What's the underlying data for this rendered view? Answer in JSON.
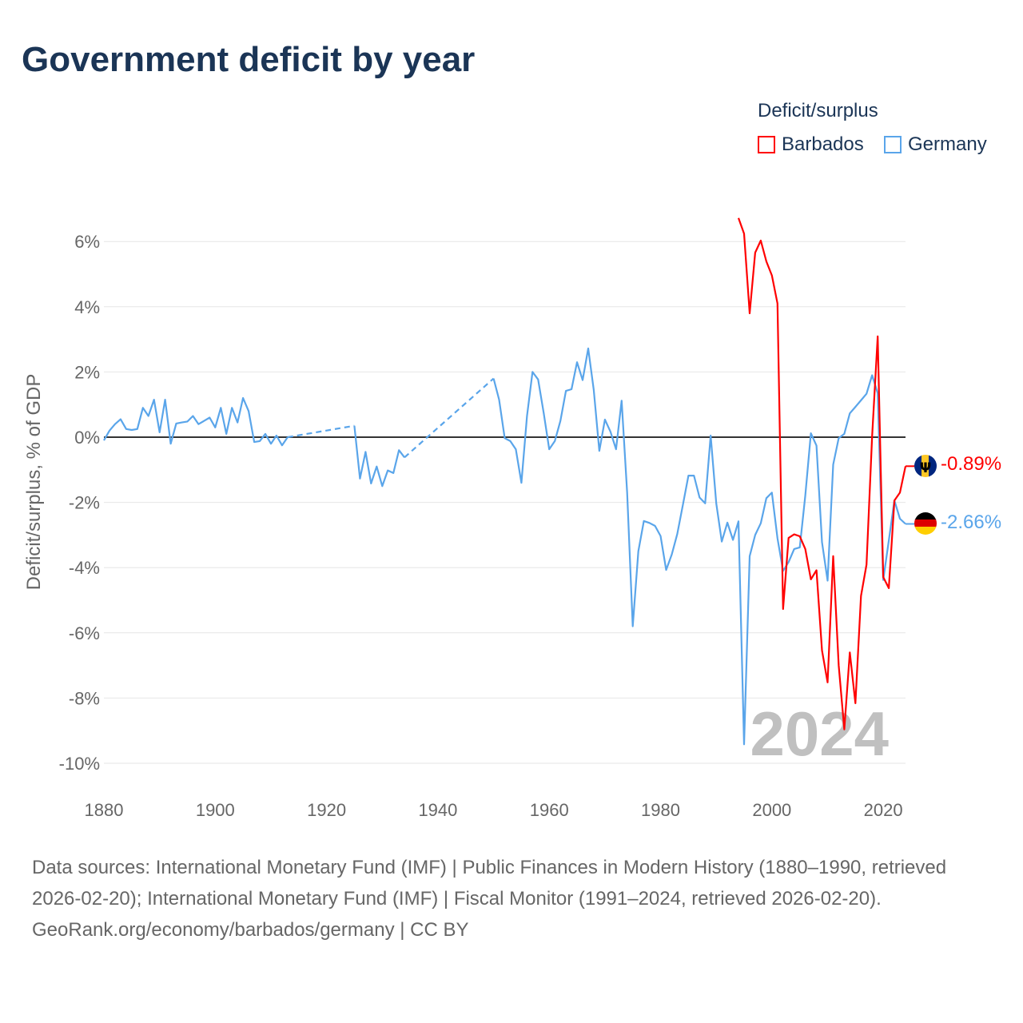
{
  "title": "Government deficit by year",
  "legend": {
    "title": "Deficit/surplus",
    "entries": [
      {
        "name": "Barbados",
        "color": "#ff0000"
      },
      {
        "name": "Germany",
        "color": "#5aa5ea"
      }
    ]
  },
  "year_watermark": "2024",
  "end_labels": {
    "barbados": "-0.89%",
    "germany": "-2.66%"
  },
  "flags": {
    "barbados": "barbados-flag",
    "germany": "germany-flag"
  },
  "footer": {
    "sources": "Data sources: International Monetary Fund (IMF) | Public Finances in Modern History (1880–1990, retrieved 2026-02-20); International Monetary Fund (IMF) | Fiscal Monitor (1991–2024, retrieved 2026-02-20).",
    "credit": "GeoRank.org/economy/barbados/germany | CC BY"
  },
  "chart_data": {
    "type": "line",
    "title": "Government deficit by year",
    "xlabel": "",
    "ylabel": "Deficit/surplus, % of GDP",
    "xlim": [
      1880,
      2024
    ],
    "ylim": [
      -10.5,
      6.8
    ],
    "xticks": [
      "1880",
      "1900",
      "1920",
      "1940",
      "1960",
      "1980",
      "2000",
      "2020"
    ],
    "yticks": [
      {
        "v": 6,
        "label": "6%"
      },
      {
        "v": 4,
        "label": "4%"
      },
      {
        "v": 2,
        "label": "2%"
      },
      {
        "v": 0,
        "label": "0%"
      },
      {
        "v": -2,
        "label": "-2%"
      },
      {
        "v": -4,
        "label": "-4%"
      },
      {
        "v": -6,
        "label": "-6%"
      },
      {
        "v": -8,
        "label": "-8%"
      },
      {
        "v": -10,
        "label": "-10%"
      }
    ],
    "grid": true,
    "legend_position": "top-right",
    "series": [
      {
        "name": "Barbados",
        "color": "#ff0000",
        "start_year": 1994,
        "values": [
          6.72,
          6.24,
          3.8,
          5.66,
          6.03,
          5.39,
          4.96,
          4.1,
          -5.27,
          -3.09,
          -2.98,
          -3.04,
          -3.43,
          -4.36,
          -4.08,
          -6.54,
          -7.52,
          -3.65,
          -7.0,
          -8.96,
          -6.6,
          -8.16,
          -4.87,
          -3.91,
          0.02,
          3.09,
          -4.29,
          -4.63,
          -1.94,
          -1.7,
          -0.89
        ]
      },
      {
        "name": "Germany",
        "color": "#5aa5ea",
        "start_year": 1880,
        "values": [
          -0.1,
          0.2,
          0.4,
          0.55,
          0.25,
          0.22,
          0.25,
          0.9,
          0.65,
          1.15,
          0.15,
          1.15,
          -0.2,
          0.42,
          0.45,
          0.48,
          0.65,
          0.4,
          0.5,
          0.6,
          0.3,
          0.9,
          0.1,
          0.9,
          0.45,
          1.2,
          0.8,
          -0.15,
          -0.12,
          0.1,
          -0.2,
          0.05,
          -0.25,
          0.0,
          null,
          null,
          null,
          null,
          null,
          null,
          null,
          null,
          null,
          null,
          null,
          0.35,
          -1.27,
          -0.45,
          -1.42,
          -0.9,
          -1.5,
          -1.02,
          -1.1,
          -0.4,
          -0.62,
          null,
          null,
          null,
          null,
          null,
          null,
          null,
          null,
          null,
          null,
          null,
          null,
          null,
          null,
          null,
          1.8,
          1.15,
          -0.03,
          -0.12,
          -0.37,
          -1.4,
          0.65,
          2.0,
          1.77,
          0.74,
          -0.37,
          -0.12,
          0.5,
          1.42,
          1.47,
          2.3,
          1.75,
          2.72,
          1.45,
          -0.42,
          0.54,
          0.17,
          -0.37,
          1.12,
          -1.7,
          -5.8,
          -3.5,
          -2.57,
          -2.63,
          -2.72,
          -3.03,
          -4.07,
          -3.6,
          -2.97,
          -2.08,
          -1.18,
          -1.18,
          -1.85,
          -2.03,
          0.05,
          -2.03,
          -3.2,
          -2.62,
          -3.15,
          -2.58,
          -9.42,
          -3.65,
          -3.0,
          -2.64,
          -1.87,
          -1.7,
          -3.1,
          -4.1,
          -3.83,
          -3.43,
          -3.38,
          -1.79,
          0.12,
          -0.26,
          -3.22,
          -4.4,
          -0.84,
          -0.03,
          0.1,
          0.73,
          0.93,
          1.13,
          1.33,
          1.9,
          1.35,
          -4.38,
          -3.17,
          -1.94,
          -2.5,
          -2.66
        ]
      }
    ]
  }
}
